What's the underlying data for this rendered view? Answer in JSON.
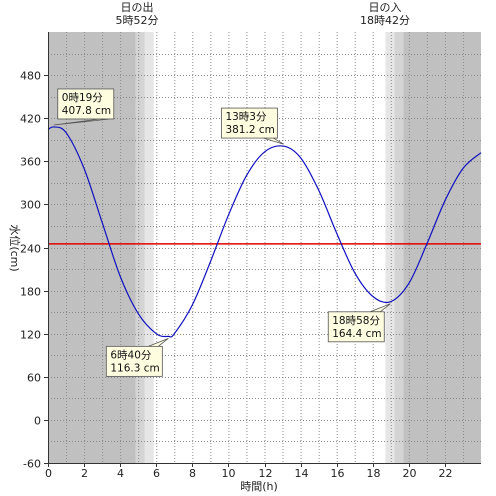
{
  "chart_data": {
    "type": "line",
    "title": "",
    "xlabel": "時間(h)",
    "ylabel": "水位(cm)",
    "xlim": [
      0,
      24
    ],
    "ylim": [
      -60,
      540
    ],
    "x_ticks": [
      0,
      2,
      4,
      6,
      8,
      10,
      12,
      14,
      16,
      18,
      20,
      22
    ],
    "y_ticks": [
      -60,
      0,
      60,
      120,
      180,
      240,
      300,
      360,
      420,
      480
    ],
    "grid": true,
    "sunrise": {
      "label": "日の出",
      "time": "5時52分",
      "hour": 5.867
    },
    "sunset": {
      "label": "日の入",
      "time": "18時42分",
      "hour": 18.7
    },
    "reference_line": {
      "value": 245,
      "color": "#e00000"
    },
    "series": [
      {
        "color": "#1010c0",
        "x": [
          0,
          0.32,
          1,
          2,
          3,
          4,
          5,
          6,
          6.67,
          7,
          8,
          9,
          10,
          11,
          12,
          13.05,
          14,
          15,
          16,
          17,
          18,
          18.97,
          20,
          21,
          22,
          23,
          24
        ],
        "y": [
          404,
          407.8,
          400,
          350,
          275,
          200,
          148,
          120,
          116.3,
          120,
          160,
          220,
          285,
          340,
          373,
          381.2,
          365,
          320,
          260,
          205,
          172,
          164.4,
          190,
          245,
          305,
          350,
          372
        ]
      }
    ],
    "annotations": [
      {
        "time": "0時19分",
        "value": "407.8 cm",
        "x": 0.32,
        "y": 407.8
      },
      {
        "time": "6時40分",
        "value": "116.3 cm",
        "x": 6.67,
        "y": 116.3
      },
      {
        "time": "13時3分",
        "value": "381.2 cm",
        "x": 13.05,
        "y": 381.2
      },
      {
        "time": "18時58分",
        "value": "164.4 cm",
        "x": 18.97,
        "y": 164.4
      }
    ]
  },
  "colors": {
    "night": "#c0c0c0",
    "twilight_dark": "#d4d4d4",
    "twilight_light": "#e6e6e6",
    "day": "#ffffff",
    "grid": "#8c8c8c",
    "callout_bg": "#fffde0"
  }
}
